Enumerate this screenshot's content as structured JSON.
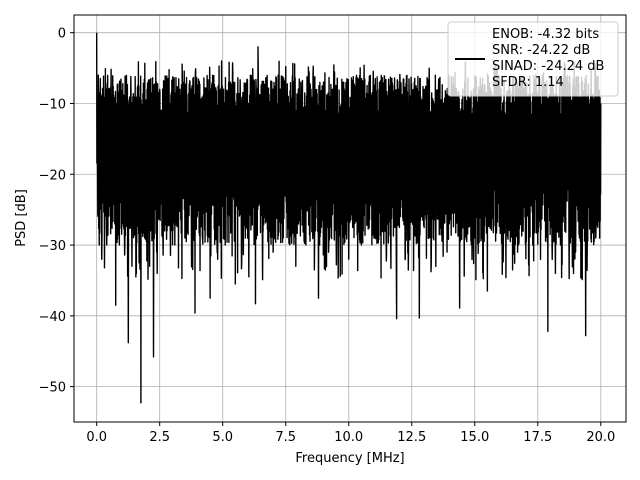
{
  "chart_data": {
    "type": "line",
    "title": "",
    "xlabel": "Frequency [MHz]",
    "ylabel": "PSD [dB]",
    "xlim": [
      -0.9,
      21.0
    ],
    "ylim": [
      -55,
      2.5
    ],
    "xticks": [
      0.0,
      2.5,
      5.0,
      7.5,
      10.0,
      12.5,
      15.0,
      17.5,
      20.0
    ],
    "xtick_labels": [
      "0.0",
      "2.5",
      "5.0",
      "7.5",
      "10.0",
      "12.5",
      "15.0",
      "17.5",
      "20.0"
    ],
    "yticks": [
      0,
      -10,
      -20,
      -30,
      -40,
      -50
    ],
    "ytick_labels": [
      "0",
      "−10",
      "−20",
      "−30",
      "−40",
      "−50"
    ],
    "grid": true,
    "legend": {
      "placement": "top-right",
      "entries": [
        "ENOB: -4.32 bits",
        "SNR: -24.22 dB",
        "SINAD: -24.24 dB",
        "SFDR: 1.14"
      ]
    },
    "series": [
      {
        "color": "#000000",
        "x_range": [
          0.0,
          20.0
        ],
        "band": {
          "upper_typical": -8,
          "lower_typical": -28,
          "peak_max": -1.2
        },
        "points": [
          [
            0.0,
            0.0
          ],
          [
            0.03,
            -19
          ],
          [
            0.06,
            -6
          ],
          [
            0.1,
            -30
          ],
          [
            0.15,
            -12
          ],
          [
            0.2,
            -32
          ],
          [
            0.3,
            -14
          ],
          [
            0.4,
            -30
          ],
          [
            0.5,
            -10
          ],
          [
            0.6,
            -27
          ],
          [
            0.7,
            -13
          ],
          [
            0.75,
            -38.5
          ],
          [
            0.8,
            -10
          ],
          [
            0.9,
            -30
          ],
          [
            1.0,
            -11
          ],
          [
            1.1,
            -28
          ],
          [
            1.2,
            -9
          ],
          [
            1.25,
            -43.8
          ],
          [
            1.3,
            -10
          ],
          [
            1.4,
            -33
          ],
          [
            1.5,
            -11
          ],
          [
            1.55,
            -34.5
          ],
          [
            1.6,
            -9
          ],
          [
            1.7,
            -27
          ],
          [
            1.75,
            -52.3
          ],
          [
            1.8,
            -12
          ],
          [
            1.9,
            -29
          ],
          [
            2.0,
            -8
          ],
          [
            2.1,
            -33
          ],
          [
            2.2,
            -10
          ],
          [
            2.25,
            -45.8
          ],
          [
            2.3,
            -9
          ],
          [
            2.4,
            -34
          ],
          [
            2.5,
            -8
          ],
          [
            2.7,
            -28
          ],
          [
            2.9,
            -10
          ],
          [
            3.1,
            -30
          ],
          [
            3.3,
            -8
          ],
          [
            3.5,
            -29
          ],
          [
            3.7,
            -7
          ],
          [
            3.9,
            -39.6
          ],
          [
            4.0,
            -10
          ],
          [
            4.2,
            -29
          ],
          [
            4.4,
            -7.5
          ],
          [
            4.5,
            -37.5
          ],
          [
            4.7,
            -9
          ],
          [
            4.8,
            -32
          ],
          [
            4.95,
            -4
          ],
          [
            5.1,
            -30
          ],
          [
            5.3,
            -7
          ],
          [
            5.5,
            -35.5
          ],
          [
            5.7,
            -9
          ],
          [
            5.9,
            -29
          ],
          [
            6.1,
            -6
          ],
          [
            6.3,
            -38.3
          ],
          [
            6.4,
            -2
          ],
          [
            6.6,
            -28
          ],
          [
            6.8,
            -8
          ],
          [
            7.0,
            -31
          ],
          [
            7.2,
            -6
          ],
          [
            7.4,
            -29
          ],
          [
            7.6,
            -9
          ],
          [
            7.9,
            -33
          ],
          [
            8.1,
            -7
          ],
          [
            8.3,
            -30
          ],
          [
            8.5,
            -8
          ],
          [
            8.8,
            -37.5
          ],
          [
            9.0,
            -7
          ],
          [
            9.2,
            -31
          ],
          [
            9.4,
            -8
          ],
          [
            9.6,
            -28
          ],
          [
            9.8,
            -7
          ],
          [
            10.0,
            -32
          ],
          [
            10.2,
            -9
          ],
          [
            10.5,
            -30
          ],
          [
            10.8,
            -7
          ],
          [
            11.0,
            -29
          ],
          [
            11.2,
            -8
          ],
          [
            11.5,
            -31
          ],
          [
            11.9,
            -40.4
          ],
          [
            12.0,
            -8
          ],
          [
            12.3,
            -28
          ],
          [
            12.6,
            -7
          ],
          [
            12.8,
            -40.3
          ],
          [
            13.0,
            -8
          ],
          [
            13.3,
            -29
          ],
          [
            13.6,
            -7
          ],
          [
            13.9,
            -31
          ],
          [
            14.1,
            -9
          ],
          [
            14.4,
            -38.9
          ],
          [
            14.6,
            -7
          ],
          [
            14.9,
            -29
          ],
          [
            15.2,
            -8
          ],
          [
            15.5,
            -36.5
          ],
          [
            15.8,
            -7
          ],
          [
            16.1,
            -30
          ],
          [
            16.4,
            -8
          ],
          [
            16.7,
            -31
          ],
          [
            17.0,
            -7
          ],
          [
            17.3,
            -30
          ],
          [
            17.6,
            -9
          ],
          [
            17.9,
            -42.2
          ],
          [
            18.1,
            -8
          ],
          [
            18.4,
            -30
          ],
          [
            18.7,
            -7
          ],
          [
            19.0,
            -31
          ],
          [
            19.2,
            -9
          ],
          [
            19.4,
            -42.8
          ],
          [
            19.6,
            -8
          ],
          [
            19.8,
            -29
          ],
          [
            20.0,
            -10
          ]
        ]
      }
    ]
  }
}
